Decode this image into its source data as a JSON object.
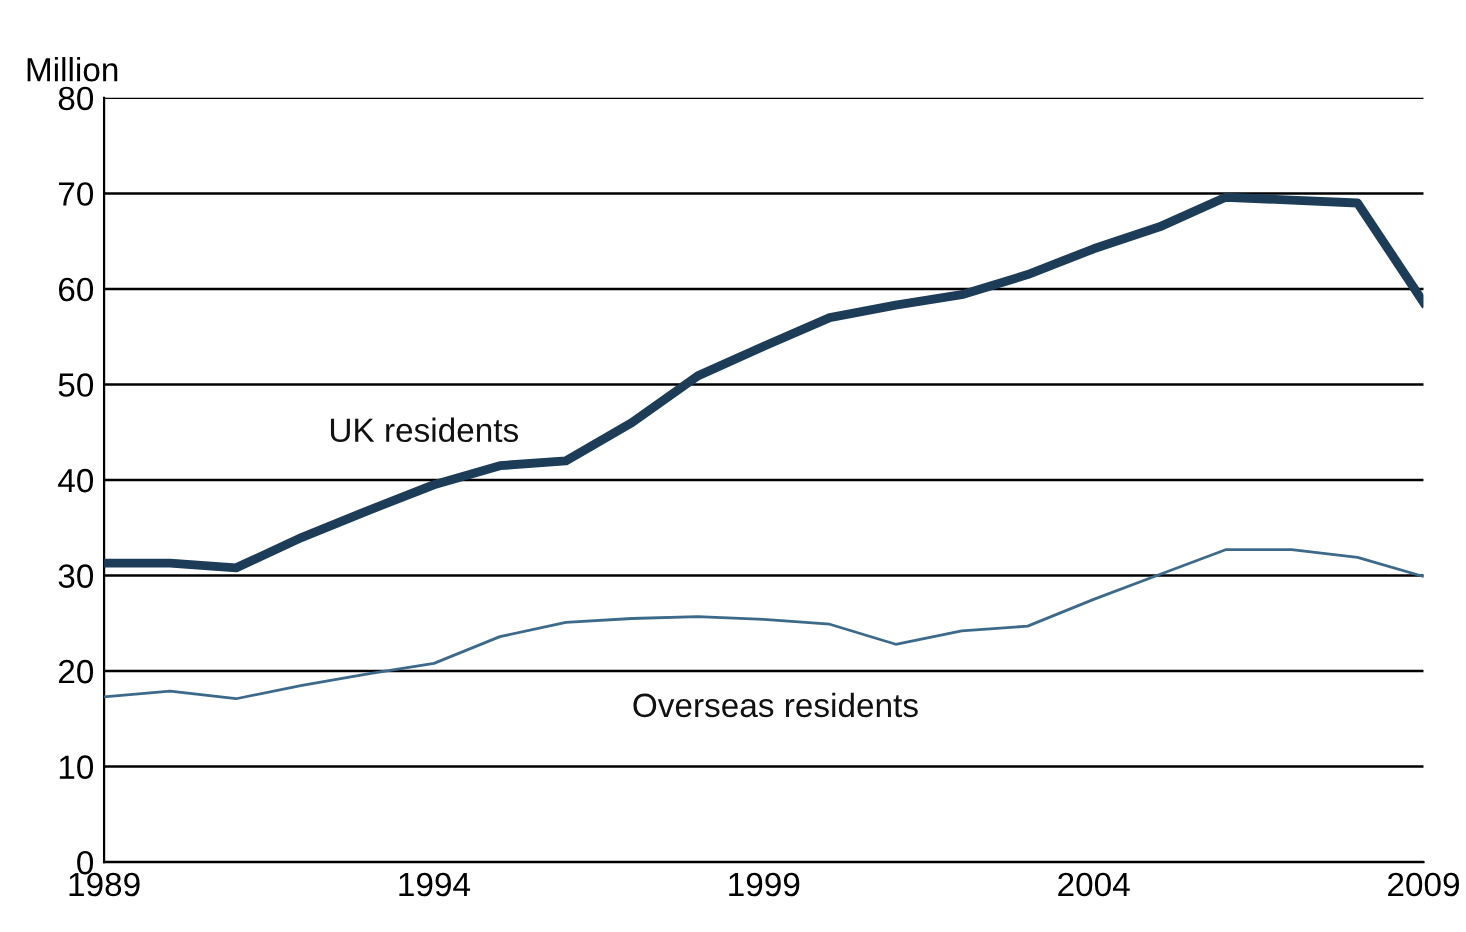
{
  "chart_data": {
    "type": "line",
    "ylabel": "Million",
    "x": [
      1989,
      1990,
      1991,
      1992,
      1993,
      1994,
      1995,
      1996,
      1997,
      1998,
      1999,
      2000,
      2001,
      2002,
      2003,
      2004,
      2005,
      2006,
      2007,
      2008,
      2009
    ],
    "series": [
      {
        "name": "UK residents",
        "color": "#1c3c58",
        "values": [
          31.3,
          31.3,
          30.8,
          34,
          36.8,
          39.5,
          41.5,
          42,
          46,
          50.9,
          54,
          57,
          58.3,
          59.4,
          61.5,
          64.2,
          66.5,
          69.6,
          69.3,
          69,
          58.6
        ]
      },
      {
        "name": "Overseas residents",
        "color": "#3d6a8a",
        "values": [
          17.3,
          17.9,
          17.1,
          18.5,
          19.7,
          20.8,
          23.6,
          25.1,
          25.5,
          25.7,
          25.4,
          24.9,
          22.8,
          24.2,
          24.7,
          27.5,
          30.1,
          32.7,
          32.7,
          31.9,
          29.9
        ]
      }
    ],
    "xlim": [
      1989,
      2009
    ],
    "xticks": [
      1989,
      1994,
      1999,
      2004,
      2009
    ],
    "ylim": [
      0,
      80
    ],
    "yticks": [
      0,
      10,
      20,
      30,
      40,
      50,
      60,
      70,
      80
    ],
    "grid": "y",
    "legend": false,
    "marker": "none",
    "line_style": "solid"
  }
}
